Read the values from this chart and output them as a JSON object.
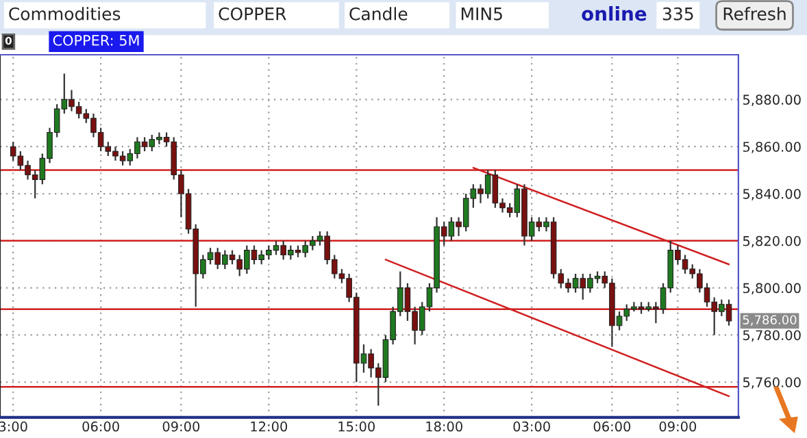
{
  "chart_data": {
    "type": "candlestick",
    "title": "COPPER: 5M",
    "annotations": [
      "Commodities",
      "COPPER",
      "Candle",
      "MIN5",
      "online",
      "335",
      "Refresh",
      "0",
      "5,786.00"
    ],
    "categories": [
      "3:00",
      null,
      null,
      null,
      null,
      null,
      null,
      null,
      null,
      null,
      null,
      null,
      "06:00",
      null,
      null,
      null,
      null,
      null,
      null,
      null,
      null,
      null,
      null,
      "09:00",
      null,
      null,
      null,
      null,
      null,
      null,
      null,
      null,
      null,
      null,
      null,
      "12:00",
      null,
      null,
      null,
      null,
      null,
      null,
      null,
      null,
      null,
      null,
      null,
      "15:00",
      null,
      null,
      null,
      null,
      null,
      null,
      null,
      null,
      null,
      null,
      null,
      "18:00",
      null,
      null,
      null,
      null,
      null,
      null,
      null,
      null,
      null,
      null,
      null,
      "03:00",
      null,
      null,
      null,
      null,
      null,
      null,
      null,
      null,
      null,
      null,
      "06:00",
      null,
      null,
      null,
      null,
      null,
      null,
      null,
      null,
      "09:00",
      null,
      null,
      null,
      null,
      null,
      null,
      null
    ],
    "ohlc": [
      [
        5860,
        5862,
        5854,
        5856
      ],
      [
        5856,
        5858,
        5850,
        5852
      ],
      [
        5852,
        5854,
        5846,
        5848
      ],
      [
        5848,
        5850,
        5838,
        5846
      ],
      [
        5846,
        5857,
        5844,
        5855
      ],
      [
        5855,
        5868,
        5853,
        5866
      ],
      [
        5866,
        5878,
        5864,
        5876
      ],
      [
        5876,
        5891,
        5874,
        5880
      ],
      [
        5880,
        5884,
        5875,
        5877
      ],
      [
        5877,
        5879,
        5872,
        5874
      ],
      [
        5874,
        5876,
        5870,
        5872
      ],
      [
        5872,
        5874,
        5864,
        5866
      ],
      [
        5866,
        5868,
        5858,
        5860
      ],
      [
        5860,
        5862,
        5856,
        5858
      ],
      [
        5858,
        5860,
        5854,
        5856
      ],
      [
        5856,
        5858,
        5852,
        5854
      ],
      [
        5854,
        5859,
        5852,
        5857
      ],
      [
        5857,
        5864,
        5855,
        5862
      ],
      [
        5862,
        5864,
        5858,
        5860
      ],
      [
        5860,
        5865,
        5858,
        5863
      ],
      [
        5863,
        5866,
        5861,
        5864
      ],
      [
        5864,
        5866,
        5860,
        5862
      ],
      [
        5862,
        5864,
        5846,
        5848
      ],
      [
        5848,
        5850,
        5830,
        5840
      ],
      [
        5840,
        5842,
        5823,
        5825
      ],
      [
        5825,
        5827,
        5792,
        5806
      ],
      [
        5806,
        5814,
        5804,
        5812
      ],
      [
        5812,
        5817,
        5810,
        5815
      ],
      [
        5815,
        5817,
        5808,
        5810
      ],
      [
        5810,
        5816,
        5808,
        5814
      ],
      [
        5814,
        5816,
        5810,
        5812
      ],
      [
        5812,
        5814,
        5805,
        5808
      ],
      [
        5808,
        5818,
        5806,
        5816
      ],
      [
        5816,
        5818,
        5810,
        5812
      ],
      [
        5812,
        5816,
        5810,
        5814
      ],
      [
        5814,
        5818,
        5812,
        5816
      ],
      [
        5816,
        5820,
        5814,
        5818
      ],
      [
        5818,
        5820,
        5812,
        5814
      ],
      [
        5814,
        5818,
        5812,
        5816
      ],
      [
        5816,
        5818,
        5813,
        5815
      ],
      [
        5815,
        5820,
        5813,
        5818
      ],
      [
        5818,
        5822,
        5816,
        5820
      ],
      [
        5820,
        5824,
        5818,
        5822
      ],
      [
        5822,
        5824,
        5810,
        5812
      ],
      [
        5812,
        5814,
        5804,
        5806
      ],
      [
        5806,
        5808,
        5802,
        5804
      ],
      [
        5804,
        5806,
        5794,
        5796
      ],
      [
        5796,
        5798,
        5760,
        5768
      ],
      [
        5768,
        5776,
        5764,
        5772
      ],
      [
        5772,
        5774,
        5762,
        5766
      ],
      [
        5766,
        5768,
        5750,
        5762
      ],
      [
        5762,
        5780,
        5760,
        5778
      ],
      [
        5778,
        5792,
        5776,
        5790
      ],
      [
        5790,
        5807,
        5788,
        5800
      ],
      [
        5800,
        5802,
        5786,
        5790
      ],
      [
        5790,
        5792,
        5776,
        5782
      ],
      [
        5782,
        5794,
        5780,
        5792
      ],
      [
        5792,
        5802,
        5790,
        5800
      ],
      [
        5800,
        5830,
        5798,
        5826
      ],
      [
        5826,
        5828,
        5818,
        5822
      ],
      [
        5822,
        5830,
        5820,
        5828
      ],
      [
        5828,
        5830,
        5822,
        5826
      ],
      [
        5826,
        5840,
        5824,
        5838
      ],
      [
        5838,
        5844,
        5834,
        5842
      ],
      [
        5842,
        5844,
        5836,
        5840
      ],
      [
        5840,
        5850,
        5838,
        5848
      ],
      [
        5848,
        5850,
        5834,
        5836
      ],
      [
        5836,
        5838,
        5832,
        5834
      ],
      [
        5834,
        5836,
        5830,
        5832
      ],
      [
        5832,
        5844,
        5830,
        5842
      ],
      [
        5842,
        5844,
        5818,
        5822
      ],
      [
        5822,
        5830,
        5820,
        5828
      ],
      [
        5828,
        5830,
        5824,
        5826
      ],
      [
        5826,
        5830,
        5824,
        5828
      ],
      [
        5828,
        5830,
        5804,
        5806
      ],
      [
        5806,
        5808,
        5800,
        5802
      ],
      [
        5802,
        5804,
        5798,
        5800
      ],
      [
        5800,
        5806,
        5798,
        5804
      ],
      [
        5804,
        5806,
        5795,
        5800
      ],
      [
        5800,
        5806,
        5798,
        5804
      ],
      [
        5804,
        5807,
        5802,
        5805
      ],
      [
        5805,
        5807,
        5800,
        5802
      ],
      [
        5802,
        5804,
        5775,
        5784
      ],
      [
        5784,
        5790,
        5782,
        5788
      ],
      [
        5788,
        5793,
        5786,
        5791
      ],
      [
        5791,
        5794,
        5790,
        5792
      ],
      [
        5792,
        5794,
        5789,
        5791
      ],
      [
        5791,
        5794,
        5790,
        5792
      ],
      [
        5792,
        5794,
        5785,
        5791
      ],
      [
        5791,
        5802,
        5789,
        5800
      ],
      [
        5800,
        5820,
        5798,
        5816
      ],
      [
        5816,
        5818,
        5810,
        5812
      ],
      [
        5812,
        5814,
        5806,
        5808
      ],
      [
        5808,
        5810,
        5804,
        5806
      ],
      [
        5806,
        5808,
        5798,
        5800
      ],
      [
        5800,
        5802,
        5792,
        5794
      ],
      [
        5794,
        5796,
        5780,
        5790
      ],
      [
        5790,
        5795,
        5788,
        5793
      ],
      [
        5793,
        5795,
        5784,
        5786
      ]
    ],
    "series": [
      {
        "type": "line",
        "color": "#d02020",
        "values": [
          null,
          null,
          null,
          null,
          null,
          null,
          null,
          null,
          null,
          null,
          null,
          null,
          null,
          null,
          null,
          null,
          null,
          null,
          null,
          null,
          null,
          null,
          null,
          null,
          null,
          null,
          null,
          null,
          null,
          null,
          null,
          null,
          null,
          null,
          null,
          null,
          null,
          null,
          null,
          null,
          null,
          null,
          null,
          null,
          null,
          null,
          null,
          null,
          null,
          null,
          null,
          null,
          null,
          null,
          null,
          null,
          null,
          null,
          null,
          null,
          null,
          null,
          null,
          5851,
          null,
          null,
          null,
          null,
          null,
          null,
          null,
          null,
          null,
          null,
          null,
          null,
          null,
          null,
          null,
          null,
          null,
          null,
          null,
          null,
          null,
          null,
          null,
          null,
          null,
          null,
          null,
          null,
          null,
          null,
          null,
          null,
          null,
          null,
          5810
        ]
      },
      {
        "type": "line",
        "color": "#d02020",
        "values": [
          null,
          null,
          null,
          null,
          null,
          null,
          null,
          null,
          null,
          null,
          null,
          null,
          null,
          null,
          null,
          null,
          null,
          null,
          null,
          null,
          null,
          null,
          null,
          null,
          null,
          null,
          null,
          null,
          null,
          null,
          null,
          null,
          null,
          null,
          null,
          null,
          null,
          null,
          null,
          null,
          null,
          null,
          null,
          null,
          null,
          null,
          null,
          null,
          null,
          null,
          null,
          5812,
          null,
          null,
          null,
          null,
          null,
          null,
          null,
          null,
          null,
          null,
          null,
          null,
          null,
          null,
          null,
          null,
          null,
          null,
          null,
          null,
          null,
          null,
          null,
          null,
          null,
          null,
          null,
          null,
          null,
          null,
          null,
          null,
          null,
          null,
          null,
          null,
          null,
          null,
          null,
          null,
          null,
          null,
          null,
          null,
          null,
          null,
          5754
        ]
      }
    ],
    "ref_lines": [
      {
        "axis": "y",
        "value": 5850,
        "color": "#d02020"
      },
      {
        "axis": "y",
        "value": 5820,
        "color": "#d02020"
      },
      {
        "axis": "y",
        "value": 5791,
        "color": "#d02020"
      },
      {
        "axis": "y",
        "value": 5758,
        "color": "#d02020"
      }
    ],
    "ylim": [
      5745,
      5899
    ],
    "yticks": [
      {
        "value": 5760,
        "label": "5,760.00"
      },
      {
        "value": 5780,
        "label": "5,780.00"
      },
      {
        "value": 5800,
        "label": "5,800.00"
      },
      {
        "value": 5820,
        "label": "5,820.00"
      },
      {
        "value": 5840,
        "label": "5,840.00"
      },
      {
        "value": 5860,
        "label": "5,860.00"
      },
      {
        "value": 5880,
        "label": "5,880.00"
      }
    ],
    "grid": true
  }
}
